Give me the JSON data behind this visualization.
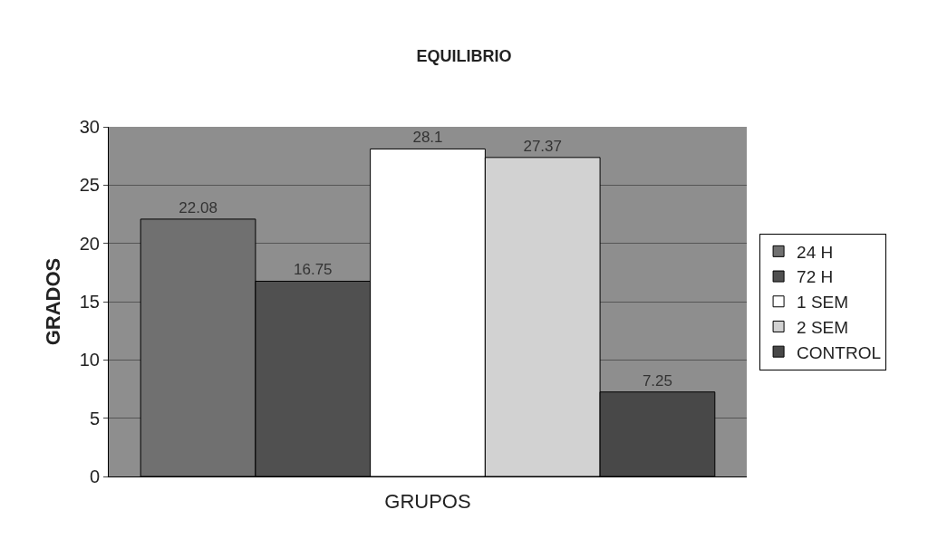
{
  "chart_data": {
    "type": "bar",
    "title": "EQUILIBRIO",
    "xlabel": "GRUPOS",
    "ylabel": "GRADOS",
    "categories": [
      null
    ],
    "series": [
      {
        "name": "24 H",
        "color": "#707070",
        "values": [
          22.08
        ]
      },
      {
        "name": "72 H",
        "color": "#505050",
        "values": [
          16.75
        ]
      },
      {
        "name": "1 SEM",
        "color": "#ffffff",
        "values": [
          28.1
        ]
      },
      {
        "name": "2 SEM",
        "color": "#d2d2d2",
        "values": [
          27.37
        ]
      },
      {
        "name": "CONTROL",
        "color": "#484848",
        "values": [
          7.25
        ]
      }
    ],
    "ylim": [
      0,
      30
    ],
    "yticks": [
      0,
      5,
      10,
      15,
      20,
      25,
      30
    ],
    "grid": "y",
    "legend": "right",
    "data_labels": true
  }
}
